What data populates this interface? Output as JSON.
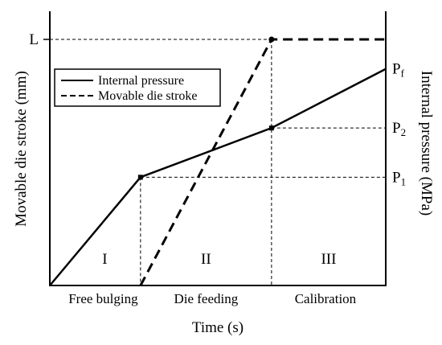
{
  "chart_data": {
    "type": "line",
    "xlabel": "Time (s)",
    "ylabel_left": "Movable die stroke (mm)",
    "ylabel_right": "Internal pressure (MPa)",
    "legend": {
      "placement": "top-left",
      "entries": [
        {
          "label": "Internal pressure",
          "style": "solid"
        },
        {
          "label": "Movable die stroke",
          "style": "dashed"
        }
      ]
    },
    "left_ticks": [
      {
        "label": "L",
        "value": 1.0
      }
    ],
    "right_ticks": [
      {
        "base": "P",
        "sub": "f",
        "value": 0.88
      },
      {
        "base": "P",
        "sub": "2",
        "value": 0.64
      },
      {
        "base": "P",
        "sub": "1",
        "value": 0.44
      }
    ],
    "stage_bounds": [
      0,
      0.27,
      0.66,
      1.0
    ],
    "stages": [
      {
        "roman": "I",
        "name": "Free bulging"
      },
      {
        "roman": "II",
        "name": "Die feeding"
      },
      {
        "roman": "III",
        "name": "Calibration"
      }
    ],
    "series": [
      {
        "name": "Internal pressure",
        "style": "solid",
        "points": [
          [
            0,
            0
          ],
          [
            0.27,
            0.44
          ],
          [
            0.66,
            0.64
          ],
          [
            1.0,
            0.88
          ]
        ]
      },
      {
        "name": "Movable die stroke",
        "style": "dashed",
        "points": [
          [
            0.27,
            0
          ],
          [
            0.66,
            1.0
          ],
          [
            1.0,
            1.0
          ]
        ]
      }
    ],
    "grid": false
  }
}
